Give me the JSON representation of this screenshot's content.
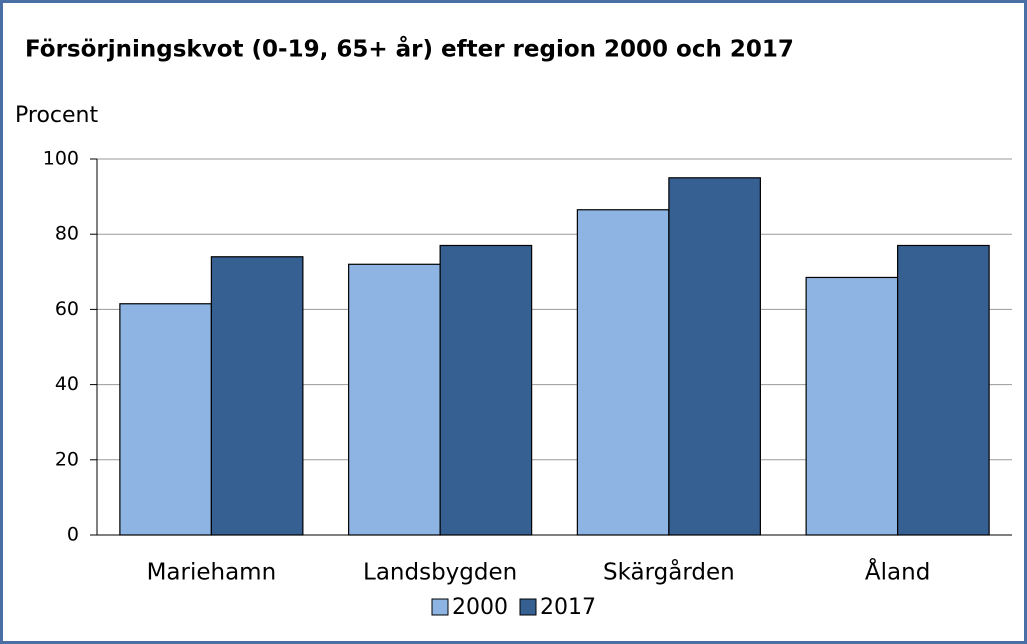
{
  "chart_data": {
    "type": "bar",
    "title": "Försörjningskvot (0-19, 65+ år) efter region 2000 och 2017",
    "y_axis_label": "Procent",
    "categories": [
      "Mariehamn",
      "Landsbygden",
      "Skärgården",
      "Åland"
    ],
    "series": [
      {
        "name": "2000",
        "color": "#8db4e2",
        "values": [
          61.5,
          72,
          86.5,
          68.5
        ]
      },
      {
        "name": "2017",
        "color": "#366092",
        "values": [
          74,
          77,
          95,
          77
        ]
      }
    ],
    "ylim": [
      0,
      100
    ],
    "yticks": [
      0,
      20,
      40,
      60,
      80,
      100
    ],
    "grid": true,
    "legend": "bottom"
  }
}
